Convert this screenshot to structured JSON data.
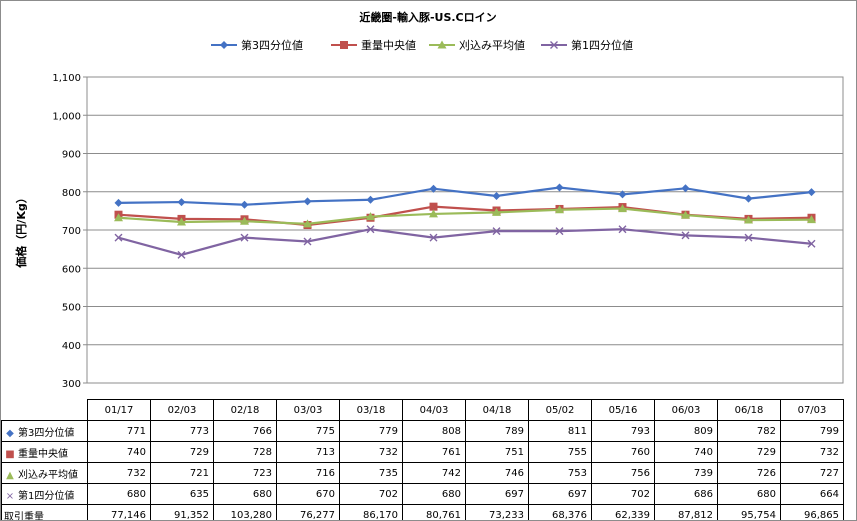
{
  "chart_data": {
    "type": "line",
    "title": "近畿圏-輸入豚-US.Cロイン",
    "ylabel": "価格（円/Kg）",
    "xlabel": "",
    "ylim": [
      300,
      1100
    ],
    "yticks": [
      300,
      400,
      500,
      600,
      700,
      800,
      900,
      1000,
      1100
    ],
    "ytick_labels": [
      "300",
      "400",
      "500",
      "600",
      "700",
      "800",
      "900",
      "1,000",
      "1,100"
    ],
    "grid": true,
    "legend": "top",
    "categories": [
      "01/17",
      "02/03",
      "02/18",
      "03/03",
      "03/18",
      "04/03",
      "04/18",
      "05/02",
      "05/16",
      "06/03",
      "06/18",
      "07/03"
    ],
    "series": [
      {
        "name": "第3四分位値",
        "color": "#4472c4",
        "marker": "diamond",
        "values": [
          771,
          773,
          766,
          775,
          779,
          808,
          789,
          811,
          793,
          809,
          782,
          799
        ]
      },
      {
        "name": "重量中央値",
        "color": "#c0504d",
        "marker": "square",
        "values": [
          740,
          729,
          728,
          713,
          732,
          761,
          751,
          755,
          760,
          740,
          729,
          732
        ]
      },
      {
        "name": "刈込み平均値",
        "color": "#9bbb59",
        "marker": "triangle",
        "values": [
          732,
          721,
          723,
          716,
          735,
          742,
          746,
          753,
          756,
          739,
          726,
          727
        ]
      },
      {
        "name": "第1四分位値",
        "color": "#8064a2",
        "marker": "x",
        "values": [
          680,
          635,
          680,
          670,
          702,
          680,
          697,
          697,
          702,
          686,
          680,
          664
        ]
      }
    ],
    "table": {
      "series_values": [
        [
          "771",
          "773",
          "766",
          "775",
          "779",
          "808",
          "789",
          "811",
          "793",
          "809",
          "782",
          "799"
        ],
        [
          "740",
          "729",
          "728",
          "713",
          "732",
          "761",
          "751",
          "755",
          "760",
          "740",
          "729",
          "732"
        ],
        [
          "732",
          "721",
          "723",
          "716",
          "735",
          "742",
          "746",
          "753",
          "756",
          "739",
          "726",
          "727"
        ],
        [
          "680",
          "635",
          "680",
          "670",
          "702",
          "680",
          "697",
          "697",
          "702",
          "686",
          "680",
          "664"
        ]
      ],
      "volume_label": "取引重量",
      "volume": [
        "77,146",
        "91,352",
        "103,280",
        "76,277",
        "86,170",
        "80,761",
        "73,233",
        "68,376",
        "62,339",
        "87,812",
        "95,754",
        "96,865"
      ]
    }
  }
}
